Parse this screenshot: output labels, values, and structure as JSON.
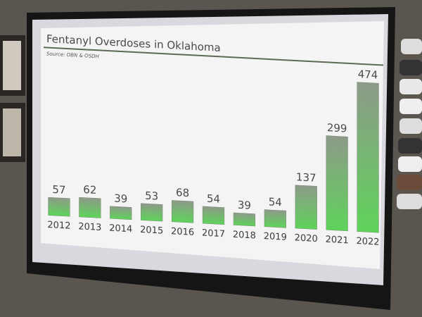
{
  "chart_data": {
    "type": "bar",
    "title": "Fentanyl Overdoses in Oklahoma",
    "subtitle": "Source: OBN & OSDH",
    "categories": [
      "2012",
      "2013",
      "2014",
      "2015",
      "2016",
      "2017",
      "2018",
      "2019",
      "2020",
      "2021",
      "2022"
    ],
    "values": [
      57,
      62,
      39,
      53,
      68,
      54,
      39,
      54,
      137,
      299,
      474
    ],
    "color": "#5fd35a"
  }
}
